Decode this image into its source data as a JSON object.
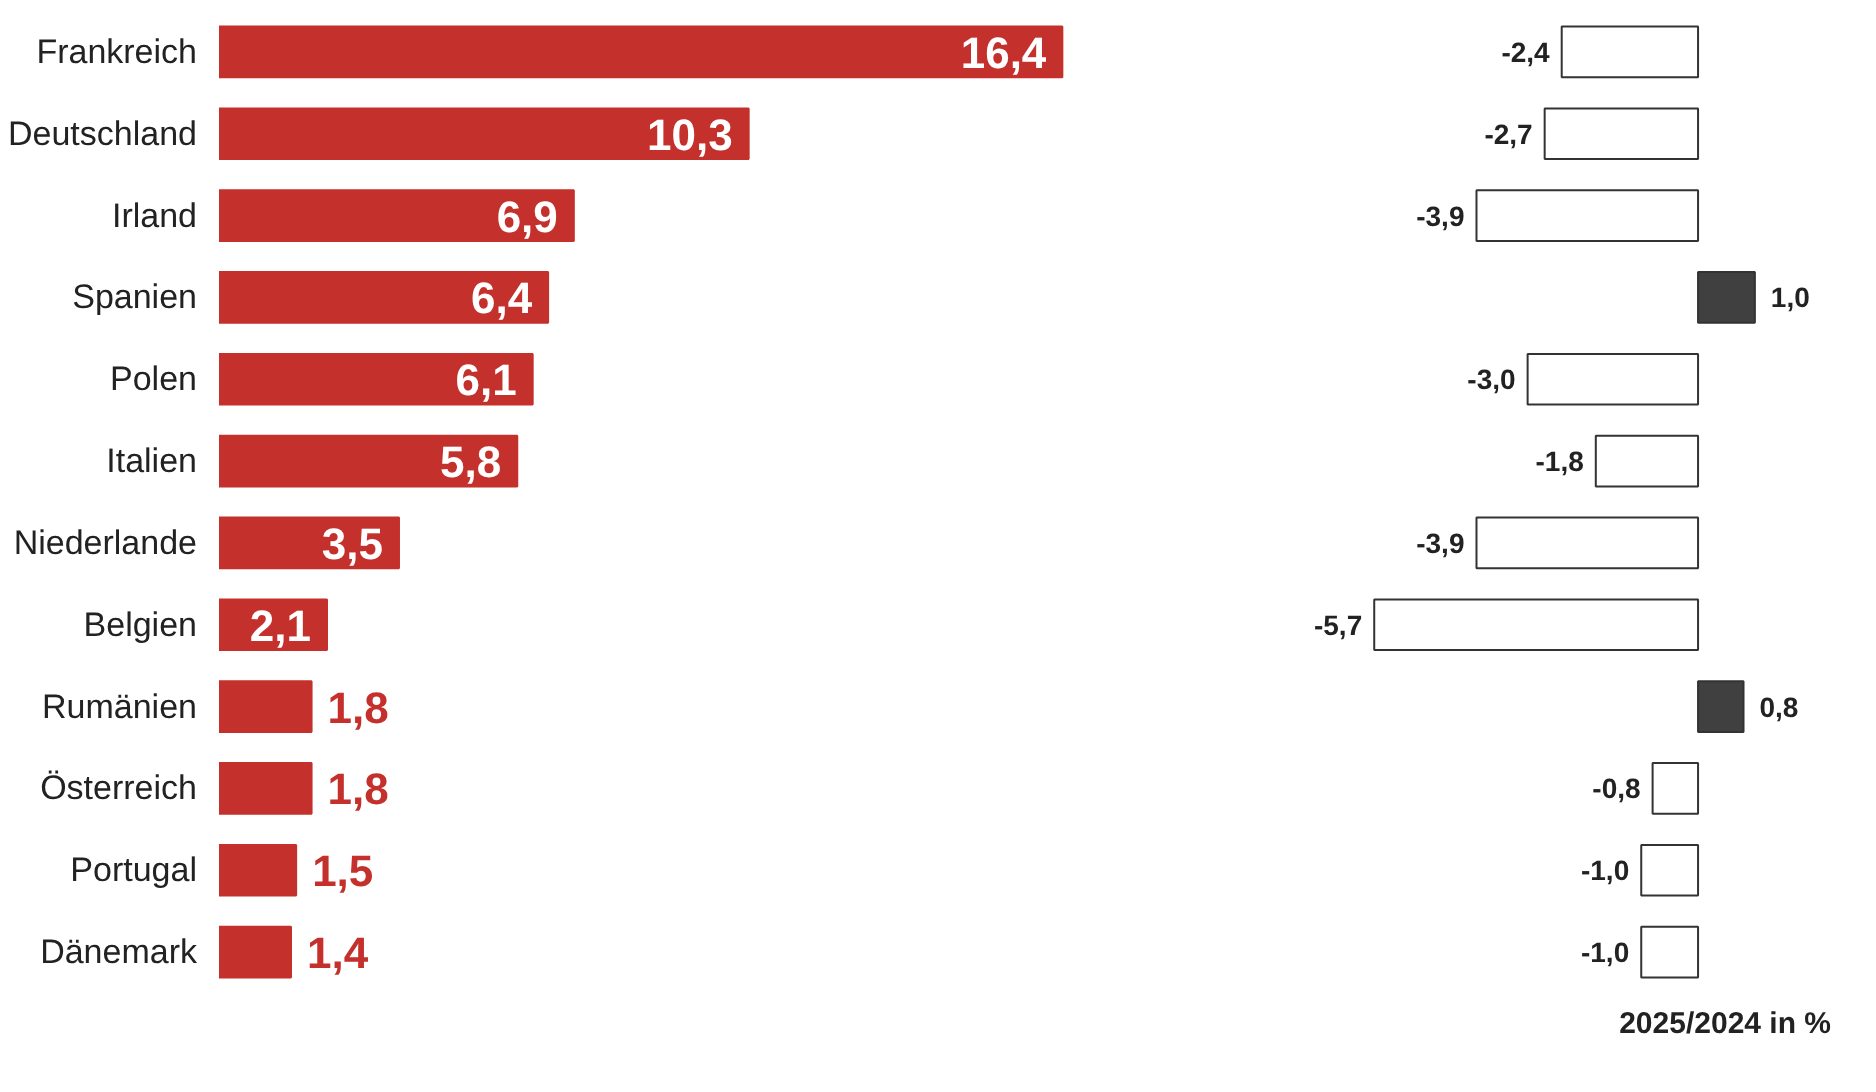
{
  "chart_data": [
    {
      "type": "bar",
      "orientation": "horizontal",
      "categories": [
        "Frankreich",
        "Deutschland",
        "Irland",
        "Spanien",
        "Polen",
        "Italien",
        "Niederlande",
        "Belgien",
        "Rumänien",
        "Österreich",
        "Portugal",
        "Dänemark"
      ],
      "values": [
        16.4,
        10.3,
        6.9,
        6.4,
        6.1,
        5.8,
        3.5,
        2.1,
        1.8,
        1.8,
        1.5,
        1.4
      ],
      "value_labels": [
        "16,4",
        "10,3",
        "6,9",
        "6,4",
        "6,1",
        "5,8",
        "3,5",
        "2,1",
        "1,8",
        "1,8",
        "1,5",
        "1,4"
      ],
      "color": "#c4302b"
    },
    {
      "type": "bar",
      "orientation": "horizontal",
      "xlabel": "2025/2024 in %",
      "values": [
        -2.4,
        -2.7,
        -3.9,
        1.0,
        -3.0,
        -1.8,
        -3.9,
        -5.7,
        0.8,
        -0.8,
        -1.0,
        -1.0
      ],
      "value_labels": [
        "-2,4",
        "-2,7",
        "-3,9",
        "1,0",
        "-3,0",
        "-1,8",
        "-3,9",
        "-5,7",
        "0,8",
        "-0,8",
        "-1,0",
        "-1,0"
      ],
      "colors": [
        "#ffffff",
        "#ffffff",
        "#ffffff",
        "#404040",
        "#ffffff",
        "#ffffff",
        "#ffffff",
        "#ffffff",
        "#404040",
        "#ffffff",
        "#ffffff",
        "#ffffff"
      ]
    }
  ]
}
